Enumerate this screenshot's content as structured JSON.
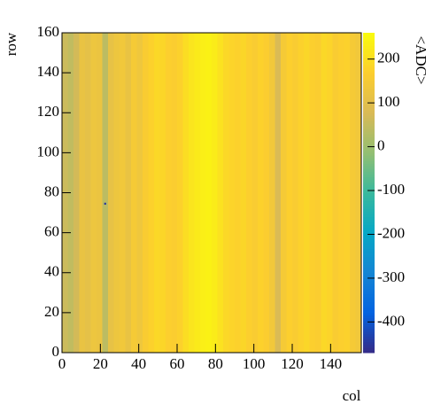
{
  "chart_data": {
    "type": "heatmap",
    "x_label": "col",
    "y_label": "row",
    "z_label": "<ADC>",
    "xbins": [
      0,
      3,
      6,
      9,
      12,
      15,
      18,
      21,
      24,
      27,
      30,
      33,
      36,
      39,
      42,
      45,
      48,
      51,
      54,
      57,
      60,
      63,
      66,
      69,
      72,
      75,
      78,
      81,
      84,
      87,
      90,
      93,
      96,
      99,
      102,
      105,
      108,
      111,
      114,
      117,
      120,
      123,
      126,
      129,
      132,
      135,
      138,
      141,
      144,
      147,
      150,
      153,
      156
    ],
    "values": [
      60,
      45,
      70,
      120,
      110,
      130,
      125,
      40,
      115,
      130,
      140,
      120,
      150,
      135,
      160,
      175,
      190,
      185,
      170,
      165,
      175,
      200,
      215,
      225,
      235,
      240,
      230,
      210,
      190,
      180,
      175,
      185,
      170,
      160,
      175,
      165,
      140,
      80,
      150,
      170,
      160,
      175,
      185,
      170,
      165,
      190,
      180,
      160,
      170,
      175,
      150,
      140
    ],
    "cells": [
      {
        "x": 22,
        "y": 74,
        "value": -450
      }
    ],
    "xlim": [
      0,
      156
    ],
    "xticks": [
      0,
      20,
      40,
      60,
      80,
      100,
      120,
      140
    ],
    "ylim": [
      0,
      160
    ],
    "yticks": [
      0,
      20,
      40,
      60,
      80,
      100,
      120,
      140,
      160
    ],
    "zlim": [
      -470,
      260
    ],
    "zticks": [
      -400,
      -300,
      -200,
      -100,
      0,
      100,
      200
    ],
    "palette": [
      "#352a87",
      "#0363e1",
      "#1485d4",
      "#06a7c6",
      "#38b99e",
      "#92bf73",
      "#d9ba56",
      "#fcce2e",
      "#f9fb0e"
    ]
  }
}
